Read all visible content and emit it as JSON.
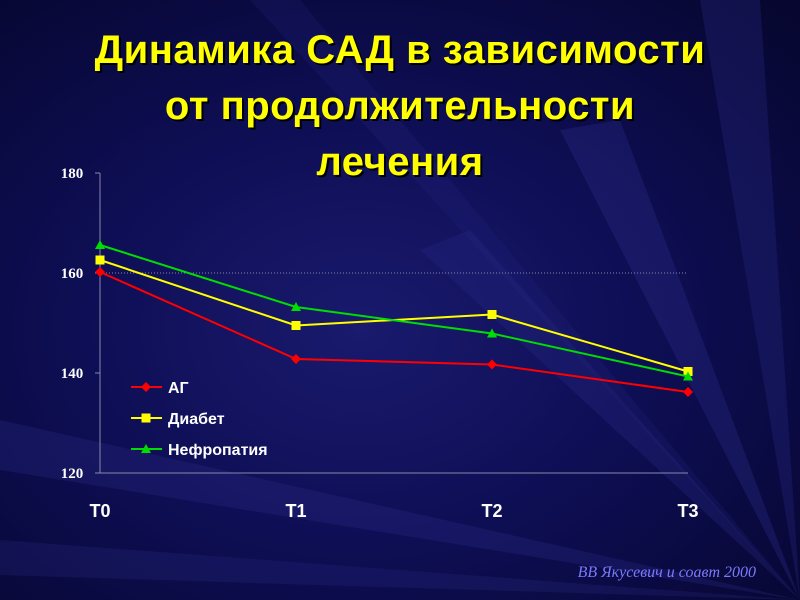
{
  "slide": {
    "title_line1": "Динамика САД в зависимости",
    "title_line2": "от продолжительности",
    "title_line3": "лечения",
    "credit": "ВВ Якусевич и соавт 2000"
  },
  "colors": {
    "background": "#0e0e55",
    "title": "#ffff00",
    "axis_text": "#ffffff",
    "credit": "#7a7aff"
  },
  "chart_data": {
    "type": "line",
    "title": "",
    "xlabel": "",
    "ylabel": "",
    "categories": [
      "T0",
      "T1",
      "T2",
      "T3"
    ],
    "ylim": [
      120,
      180
    ],
    "yticks": [
      120,
      140,
      160,
      180
    ],
    "grid": "dotted line at 160",
    "legend_position": "bottom-left",
    "series": [
      {
        "name": "АГ",
        "color": "#ff0000",
        "marker": "diamond",
        "values": [
          160.2,
          142.8,
          141.7,
          136.2
        ]
      },
      {
        "name": "Диабет",
        "color": "#ffff00",
        "marker": "square",
        "values": [
          162.6,
          149.5,
          151.7,
          140.3
        ]
      },
      {
        "name": "Нефропатия",
        "color": "#00dd00",
        "marker": "triangle",
        "values": [
          165.6,
          153.2,
          147.9,
          139.3
        ]
      }
    ]
  }
}
